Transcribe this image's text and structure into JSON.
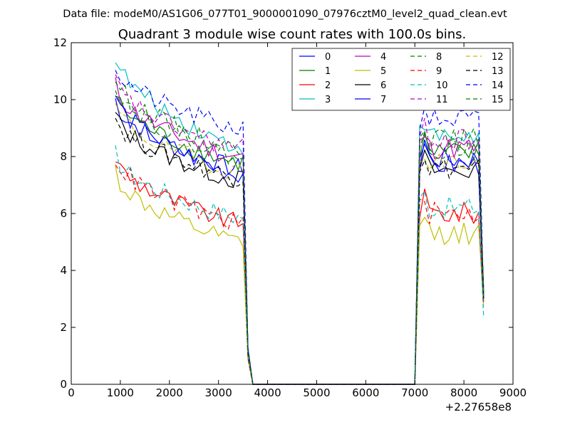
{
  "header": {
    "data_file": "Data file: modeM0/AS1G06_077T01_9000001090_07976cztM0_level2_quad_clean.evt"
  },
  "chart_data": {
    "type": "line",
    "title": "Quadrant 3 module wise count rates with 100.0s bins.",
    "xlabel": "",
    "ylabel": "",
    "x_offset_label": "+2.27658e8",
    "xlim": [
      0,
      9000
    ],
    "ylim": [
      0,
      12
    ],
    "x_ticks": [
      0,
      1000,
      2000,
      3000,
      4000,
      5000,
      6000,
      7000,
      8000,
      9000
    ],
    "y_ticks": [
      0,
      2,
      4,
      6,
      8,
      10,
      12
    ],
    "grid": false,
    "legend_position": "top-right",
    "legend_columns": 4,
    "segments": [
      {
        "x_start": 900,
        "x_end": 3500,
        "step": 100
      },
      {
        "x_start": 3600,
        "x_end": 7000,
        "step": 100
      },
      {
        "x_start": 7100,
        "x_end": 8400,
        "step": 100
      }
    ],
    "series": [
      {
        "name": "0",
        "color": "#0000ff",
        "dash": "solid",
        "level1": 10.0,
        "level2": 7.6,
        "gap_value": 1.2,
        "end_value": 3.4
      },
      {
        "name": "1",
        "color": "#008000",
        "dash": "solid",
        "level1": 10.2,
        "level2": 7.8,
        "gap_value": 1.1,
        "end_value": 3.0
      },
      {
        "name": "2",
        "color": "#ff0000",
        "dash": "solid",
        "level1": 8.0,
        "level2": 5.7,
        "gap_value": 0.9,
        "end_value": 2.9
      },
      {
        "name": "3",
        "color": "#00bfbf",
        "dash": "solid",
        "level1": 11.6,
        "level2": 8.4,
        "gap_value": 1.3,
        "end_value": 3.0
      },
      {
        "name": "4",
        "color": "#bf00bf",
        "dash": "solid",
        "level1": 10.5,
        "level2": 8.0,
        "gap_value": 1.2,
        "end_value": 3.0
      },
      {
        "name": "5",
        "color": "#bfbf00",
        "dash": "solid",
        "level1": 7.5,
        "level2": 5.0,
        "gap_value": 0.9,
        "end_value": 2.7
      },
      {
        "name": "6",
        "color": "#000000",
        "dash": "solid",
        "level1": 9.5,
        "level2": 7.2,
        "gap_value": 1.1,
        "end_value": 3.0
      },
      {
        "name": "7",
        "color": "#0000ff",
        "dash": "solid",
        "level1": 10.2,
        "level2": 7.4,
        "gap_value": 1.2,
        "end_value": 3.1
      },
      {
        "name": "8",
        "color": "#008000",
        "dash": "dashed",
        "level1": 10.8,
        "level2": 8.3,
        "gap_value": 1.2,
        "end_value": 3.2
      },
      {
        "name": "9",
        "color": "#ff0000",
        "dash": "dashed",
        "level1": 8.0,
        "level2": 5.7,
        "gap_value": 0.9,
        "end_value": 2.8
      },
      {
        "name": "10",
        "color": "#00bfbf",
        "dash": "dashed",
        "level1": 8.1,
        "level2": 5.9,
        "gap_value": 1.0,
        "end_value": 2.4
      },
      {
        "name": "11",
        "color": "#bf00bf",
        "dash": "dashed",
        "level1": 10.7,
        "level2": 8.3,
        "gap_value": 1.2,
        "end_value": 3.2
      },
      {
        "name": "12",
        "color": "#bfbf00",
        "dash": "dashed",
        "level1": 9.8,
        "level2": 7.5,
        "gap_value": 1.1,
        "end_value": 3.2
      },
      {
        "name": "13",
        "color": "#000000",
        "dash": "dashed",
        "level1": 9.4,
        "level2": 7.3,
        "gap_value": 1.1,
        "end_value": 3.2
      },
      {
        "name": "14",
        "color": "#0000ff",
        "dash": "dashed",
        "level1": 11.2,
        "level2": 9.0,
        "gap_value": 1.3,
        "end_value": 3.2
      },
      {
        "name": "15",
        "color": "#008000",
        "dash": "dashed",
        "level1": 10.6,
        "level2": 8.0,
        "gap_value": 1.2,
        "end_value": 3.1
      }
    ]
  }
}
